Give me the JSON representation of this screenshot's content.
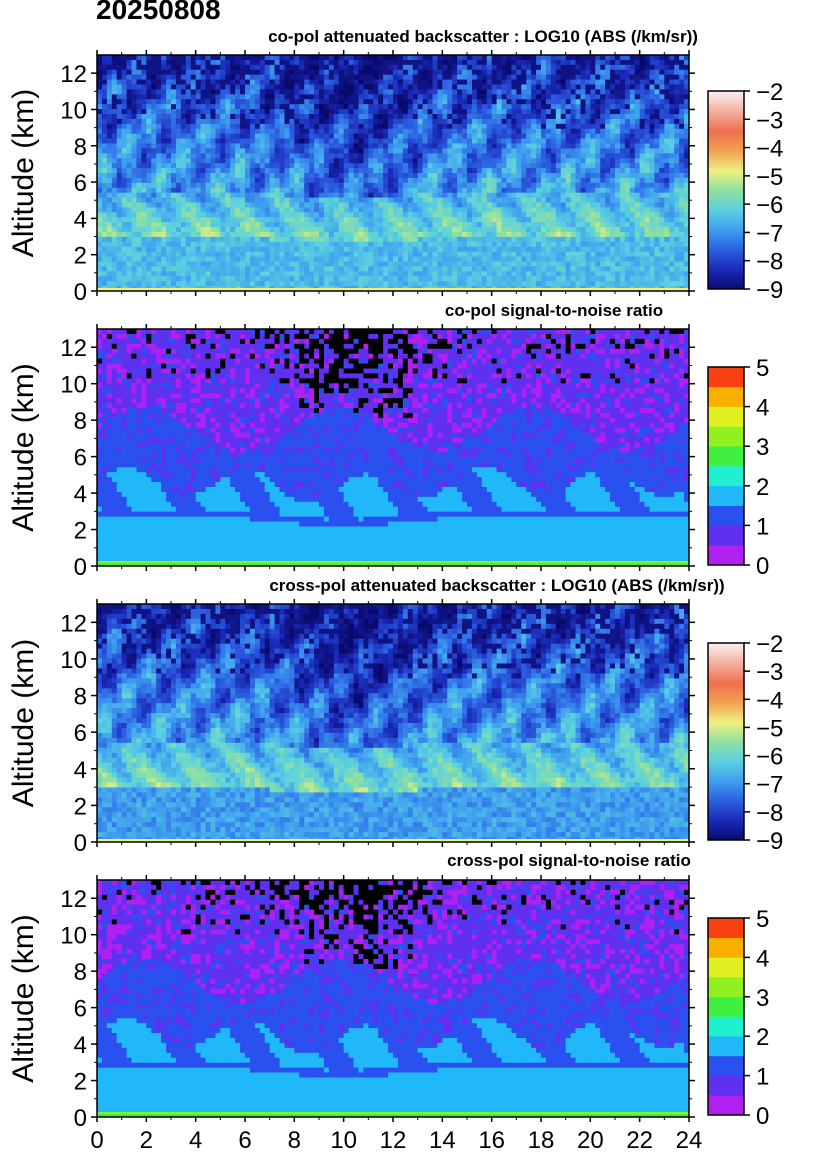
{
  "date": "20250808",
  "colors": {
    "backscatter_scale": [
      "#0a0a6e",
      "#1a2ab8",
      "#2b5fe0",
      "#3f9ff0",
      "#5ad0e0",
      "#90e0a0",
      "#f0f080",
      "#f0a050",
      "#f07050",
      "#f4b0a0",
      "#fcf0f0"
    ],
    "snr_scale": [
      "#b020f0",
      "#6030f0",
      "#2a50f0",
      "#20b8f8",
      "#20f0d0",
      "#40f040",
      "#90f020",
      "#e0f020",
      "#f8b000",
      "#f84010"
    ]
  },
  "chart_data": [
    {
      "type": "heatmap",
      "title": "co-pol attenuated backscatter : LOG10 (ABS (/km/sr))",
      "ylabel": "Altitude (km)",
      "xlabel": "",
      "xlim": [
        0,
        24
      ],
      "ylim": [
        0,
        13
      ],
      "xticks": [
        0,
        2,
        4,
        6,
        8,
        10,
        12,
        14,
        16,
        18,
        20,
        22,
        24
      ],
      "yticks": [
        0,
        2,
        4,
        6,
        8,
        10,
        12
      ],
      "colorbar": {
        "range": [
          -9,
          -2
        ],
        "ticks": [
          -2,
          -3,
          -4,
          -5,
          -6,
          -7,
          -8,
          -9
        ],
        "kind": "continuous"
      }
    },
    {
      "type": "heatmap",
      "title": "co-pol signal-to-noise ratio",
      "ylabel": "Altitude (km)",
      "xlabel": "",
      "xlim": [
        0,
        24
      ],
      "ylim": [
        0,
        13
      ],
      "xticks": [
        0,
        2,
        4,
        6,
        8,
        10,
        12,
        14,
        16,
        18,
        20,
        22,
        24
      ],
      "yticks": [
        0,
        2,
        4,
        6,
        8,
        10,
        12
      ],
      "colorbar": {
        "range": [
          0,
          5
        ],
        "ticks": [
          5,
          4,
          3,
          2,
          1,
          0
        ],
        "kind": "discrete"
      }
    },
    {
      "type": "heatmap",
      "title": "cross-pol attenuated backscatter : LOG10 (ABS (/km/sr))",
      "ylabel": "Altitude (km)",
      "xlabel": "",
      "xlim": [
        0,
        24
      ],
      "ylim": [
        0,
        13
      ],
      "xticks": [
        0,
        2,
        4,
        6,
        8,
        10,
        12,
        14,
        16,
        18,
        20,
        22,
        24
      ],
      "yticks": [
        0,
        2,
        4,
        6,
        8,
        10,
        12
      ],
      "colorbar": {
        "range": [
          -9,
          -2
        ],
        "ticks": [
          -2,
          -3,
          -4,
          -5,
          -6,
          -7,
          -8,
          -9
        ],
        "kind": "continuous"
      }
    },
    {
      "type": "heatmap",
      "title": "cross-pol signal-to-noise ratio",
      "ylabel": "Altitude (km)",
      "xlabel": "",
      "xlim": [
        0,
        24
      ],
      "ylim": [
        0,
        13
      ],
      "xticks": [
        0,
        2,
        4,
        6,
        8,
        10,
        12,
        14,
        16,
        18,
        20,
        22,
        24
      ],
      "xticklabels_shown": true,
      "yticks": [
        0,
        2,
        4,
        6,
        8,
        10,
        12
      ],
      "colorbar": {
        "range": [
          0,
          5
        ],
        "ticks": [
          5,
          4,
          3,
          2,
          1,
          0
        ],
        "kind": "discrete"
      }
    }
  ]
}
